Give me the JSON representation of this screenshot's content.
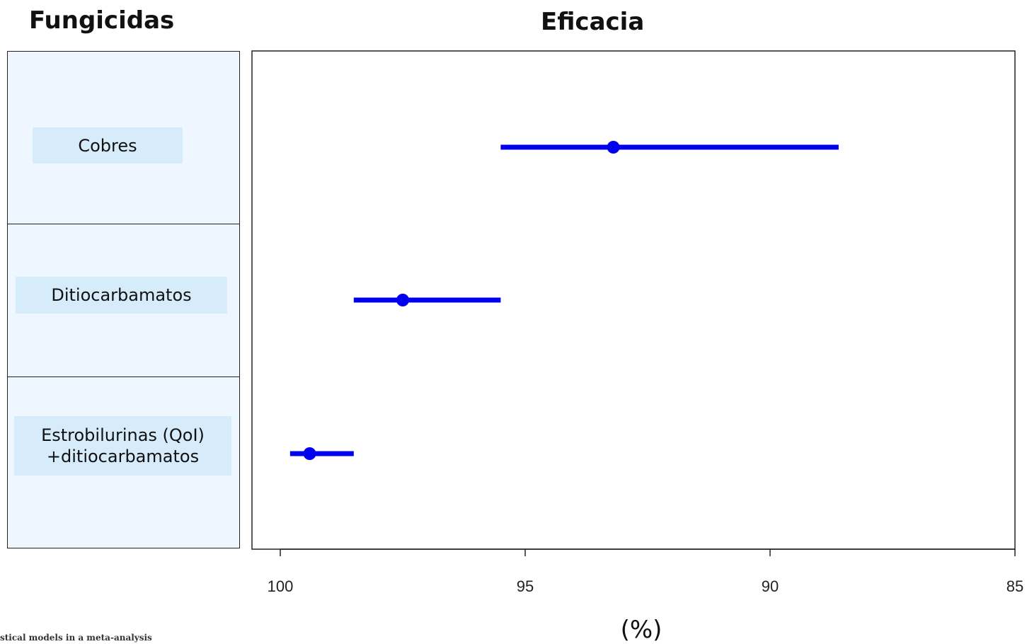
{
  "header": {
    "left_title": "Fungicidas",
    "right_title": "Eficacia"
  },
  "rows": [
    {
      "label": "Cobres"
    },
    {
      "label": "Ditiocarbamatos"
    },
    {
      "label": "Estrobilurinas (QoI)\n+ditiocarbamatos"
    }
  ],
  "footer": {
    "fragment": "stical models in a meta-analysis"
  },
  "chart_data": {
    "type": "forest",
    "title": "Eficacia",
    "xlabel": "(%)",
    "xlim": [
      100,
      85
    ],
    "x_reversed": true,
    "xticks": [
      100,
      95,
      90,
      85
    ],
    "xtick_labels": [
      "100",
      "95",
      "90",
      "85"
    ],
    "categories": [
      "Cobres",
      "Ditiocarbamatos",
      "Estrobilurinas (QoI)\n+ditiocarbamatos"
    ],
    "estimates": [
      93.2,
      97.5,
      99.4
    ],
    "ci_low": [
      88.6,
      95.5,
      98.5
    ],
    "ci_high": [
      95.5,
      98.5,
      99.8
    ],
    "grid": false,
    "colors": {
      "series": "#0000ee",
      "axis": "#222222"
    }
  }
}
